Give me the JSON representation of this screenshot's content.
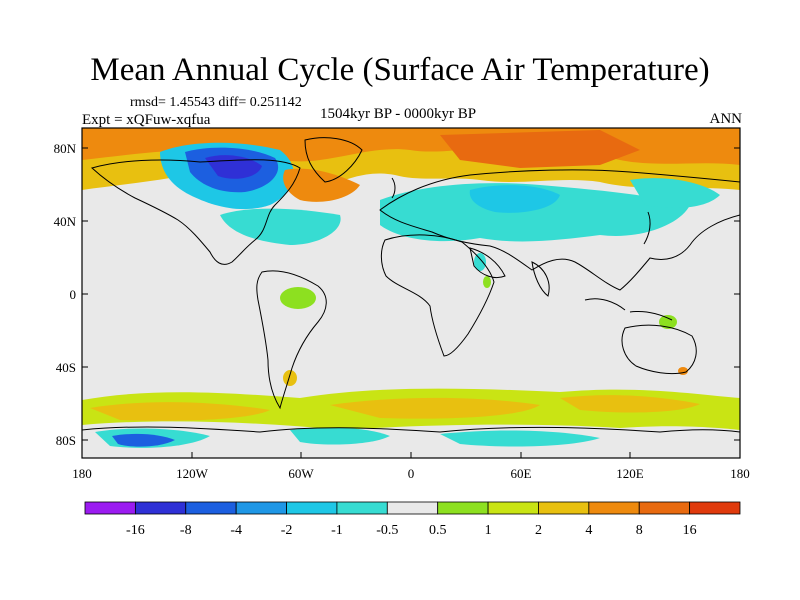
{
  "title": "Mean Annual Cycle (Surface Air Temperature)",
  "stats": "rmsd= 1.45543 diff= 0.251142",
  "experiment": "Expt = xQFuw-xqfua",
  "period": "1504kyr BP - 0000kyr BP",
  "season": "ANN",
  "lat_ticks": [
    "80N",
    "40N",
    "0",
    "40S",
    "80S"
  ],
  "lon_ticks": [
    "180",
    "120W",
    "60W",
    "0",
    "60E",
    "120E",
    "180"
  ],
  "colorbar": {
    "labels": [
      "-16",
      "-8",
      "-4",
      "-2",
      "-1",
      "-0.5",
      "0.5",
      "1",
      "2",
      "4",
      "8",
      "16"
    ],
    "colors": [
      "#9b1bf0",
      "#2f30d6",
      "#1c5fe0",
      "#1f97e6",
      "#1ec7e6",
      "#37dcd2",
      "#e9e9e9",
      "#8de020",
      "#c9e414",
      "#e8c010",
      "#ee8a0e",
      "#e86a10",
      "#e03a0c"
    ]
  }
}
